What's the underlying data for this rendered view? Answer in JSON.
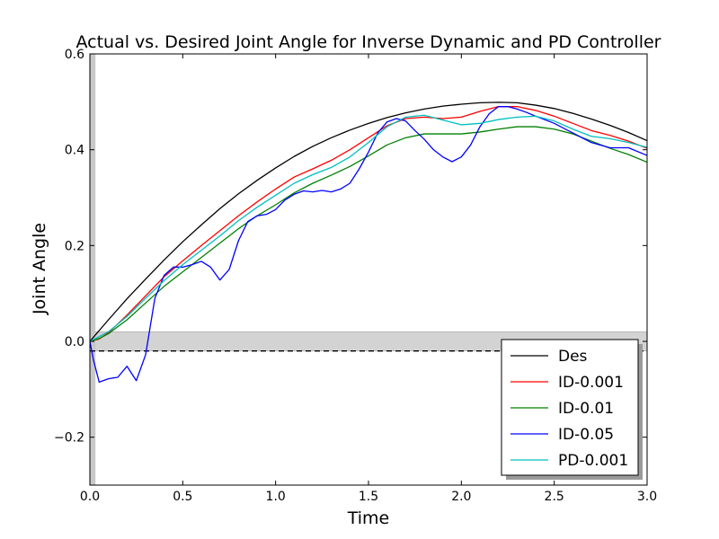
{
  "chart_data": {
    "type": "line",
    "title": "Actual vs. Desired Joint Angle for Inverse Dynamic and PD Controller",
    "xlabel": "Time",
    "ylabel": "Joint Angle",
    "xlim": [
      0.0,
      3.0
    ],
    "ylim": [
      -0.3,
      0.6
    ],
    "xticks": [
      0.0,
      0.5,
      1.0,
      1.5,
      2.0,
      2.5,
      3.0
    ],
    "xtick_labels": [
      "0.0",
      "0.5",
      "1.0",
      "1.5",
      "2.0",
      "2.5",
      "3.0"
    ],
    "yticks": [
      -0.2,
      0.0,
      0.2,
      0.4,
      0.6
    ],
    "ytick_labels": [
      "−0.2",
      "0.0",
      "0.2",
      "0.4",
      "0.6"
    ],
    "grid": false,
    "legend_position": "lower-right",
    "shaded_regions": [
      {
        "orientation": "horizontal",
        "range": [
          -0.02,
          0.02
        ],
        "color": "#d3d3d3"
      },
      {
        "orientation": "vertical",
        "range": [
          0.0,
          0.03
        ],
        "color": "#c8c8c8"
      }
    ],
    "reference_lines": [
      {
        "orientation": "horizontal",
        "value": -0.02,
        "style": "dashed",
        "color": "#000000"
      }
    ],
    "series": [
      {
        "name": "Des",
        "color": "#000000",
        "x": [
          0.0,
          0.1,
          0.2,
          0.3,
          0.4,
          0.5,
          0.6,
          0.7,
          0.8,
          0.9,
          1.0,
          1.1,
          1.2,
          1.3,
          1.4,
          1.5,
          1.6,
          1.7,
          1.8,
          1.9,
          2.0,
          2.1,
          2.2,
          2.3,
          2.4,
          2.5,
          2.6,
          2.7,
          2.8,
          2.9,
          3.0
        ],
        "y": [
          0.0,
          0.045,
          0.089,
          0.13,
          0.17,
          0.208,
          0.243,
          0.277,
          0.308,
          0.336,
          0.362,
          0.386,
          0.407,
          0.425,
          0.441,
          0.455,
          0.467,
          0.477,
          0.485,
          0.491,
          0.495,
          0.498,
          0.499,
          0.498,
          0.493,
          0.486,
          0.476,
          0.464,
          0.451,
          0.436,
          0.419
        ]
      },
      {
        "name": "ID-0.001",
        "color": "#ff0000",
        "x": [
          0.0,
          0.05,
          0.1,
          0.2,
          0.3,
          0.4,
          0.5,
          0.6,
          0.7,
          0.8,
          0.9,
          1.0,
          1.1,
          1.2,
          1.3,
          1.4,
          1.5,
          1.6,
          1.7,
          1.8,
          1.9,
          2.0,
          2.1,
          2.2,
          2.3,
          2.4,
          2.5,
          2.6,
          2.7,
          2.8,
          2.9,
          3.0
        ],
        "y": [
          0.0,
          0.005,
          0.018,
          0.055,
          0.095,
          0.135,
          0.168,
          0.2,
          0.231,
          0.262,
          0.291,
          0.318,
          0.343,
          0.36,
          0.378,
          0.4,
          0.425,
          0.45,
          0.465,
          0.468,
          0.465,
          0.468,
          0.48,
          0.49,
          0.49,
          0.482,
          0.47,
          0.455,
          0.44,
          0.43,
          0.418,
          0.403
        ]
      },
      {
        "name": "ID-0.01",
        "color": "#008000",
        "x": [
          0.0,
          0.05,
          0.1,
          0.2,
          0.3,
          0.4,
          0.5,
          0.6,
          0.7,
          0.8,
          0.9,
          1.0,
          1.1,
          1.2,
          1.3,
          1.4,
          1.5,
          1.6,
          1.7,
          1.8,
          1.9,
          2.0,
          2.1,
          2.2,
          2.3,
          2.4,
          2.5,
          2.6,
          2.7,
          2.8,
          2.9,
          3.0
        ],
        "y": [
          0.0,
          0.006,
          0.016,
          0.045,
          0.08,
          0.115,
          0.145,
          0.175,
          0.205,
          0.235,
          0.262,
          0.285,
          0.31,
          0.33,
          0.347,
          0.365,
          0.387,
          0.41,
          0.425,
          0.433,
          0.433,
          0.433,
          0.437,
          0.443,
          0.448,
          0.448,
          0.443,
          0.433,
          0.418,
          0.403,
          0.39,
          0.374
        ]
      },
      {
        "name": "ID-0.05",
        "color": "#0000ff",
        "x": [
          0.0,
          0.02,
          0.05,
          0.1,
          0.15,
          0.2,
          0.25,
          0.3,
          0.35,
          0.4,
          0.45,
          0.5,
          0.55,
          0.6,
          0.65,
          0.7,
          0.75,
          0.8,
          0.85,
          0.9,
          0.95,
          1.0,
          1.05,
          1.1,
          1.15,
          1.2,
          1.25,
          1.3,
          1.35,
          1.4,
          1.45,
          1.5,
          1.55,
          1.6,
          1.65,
          1.7,
          1.75,
          1.8,
          1.85,
          1.9,
          1.95,
          2.0,
          2.05,
          2.1,
          2.15,
          2.2,
          2.25,
          2.3,
          2.35,
          2.4,
          2.5,
          2.6,
          2.7,
          2.8,
          2.9,
          3.0
        ],
        "y": [
          0.0,
          -0.04,
          -0.085,
          -0.078,
          -0.075,
          -0.052,
          -0.082,
          -0.028,
          0.09,
          0.138,
          0.155,
          0.155,
          0.16,
          0.167,
          0.155,
          0.128,
          0.15,
          0.21,
          0.25,
          0.262,
          0.265,
          0.275,
          0.295,
          0.307,
          0.314,
          0.312,
          0.315,
          0.312,
          0.318,
          0.33,
          0.36,
          0.395,
          0.435,
          0.458,
          0.465,
          0.46,
          0.44,
          0.422,
          0.4,
          0.385,
          0.375,
          0.385,
          0.41,
          0.448,
          0.475,
          0.49,
          0.49,
          0.485,
          0.478,
          0.47,
          0.455,
          0.435,
          0.415,
          0.404,
          0.404,
          0.388
        ]
      },
      {
        "name": "PD-0.001",
        "color": "#00bfbf",
        "x": [
          0.0,
          0.05,
          0.1,
          0.2,
          0.3,
          0.4,
          0.5,
          0.6,
          0.7,
          0.8,
          0.9,
          1.0,
          1.1,
          1.2,
          1.3,
          1.4,
          1.5,
          1.6,
          1.7,
          1.8,
          1.9,
          2.0,
          2.1,
          2.2,
          2.3,
          2.4,
          2.5,
          2.6,
          2.7,
          2.8,
          2.9,
          3.0
        ],
        "y": [
          0.0,
          0.01,
          0.02,
          0.052,
          0.09,
          0.127,
          0.16,
          0.19,
          0.22,
          0.252,
          0.28,
          0.305,
          0.33,
          0.348,
          0.363,
          0.385,
          0.415,
          0.448,
          0.468,
          0.472,
          0.462,
          0.452,
          0.455,
          0.463,
          0.468,
          0.47,
          0.46,
          0.443,
          0.428,
          0.423,
          0.415,
          0.405
        ]
      }
    ]
  }
}
